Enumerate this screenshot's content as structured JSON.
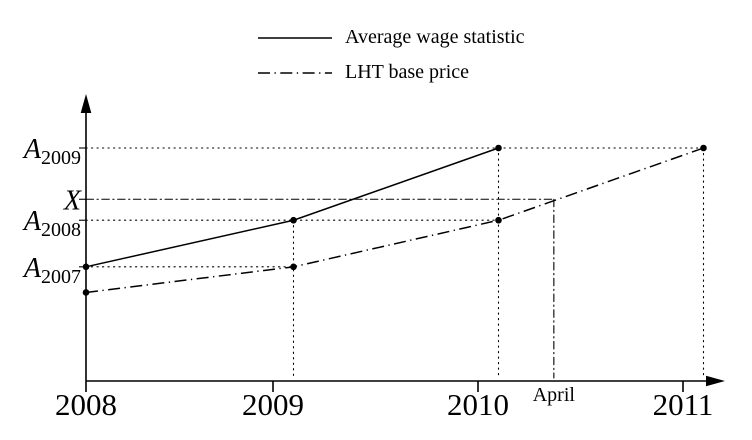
{
  "chart_data": {
    "type": "line",
    "legend": {
      "position": "top",
      "entries": [
        {
          "label": "Average wage statistic",
          "style": "solid"
        },
        {
          "label": "LHT base price",
          "style": "dashdot"
        }
      ]
    },
    "x_axis": {
      "ticks": [
        {
          "label": "2008",
          "year": 2008
        },
        {
          "label": "2009",
          "year": 2009
        },
        {
          "label": "2010",
          "year": 2010
        },
        {
          "label": "2011",
          "year": 2011
        }
      ],
      "extra_label": {
        "label": "April",
        "year": 2010.37
      }
    },
    "y_axis": {
      "labels": [
        {
          "label": "A",
          "subscript": "2009",
          "value": 1.0
        },
        {
          "label": "X",
          "subscript": "",
          "value": 0.78
        },
        {
          "label": "A",
          "subscript": "2008",
          "value": 0.69
        },
        {
          "label": "A",
          "subscript": "2007",
          "value": 0.49
        }
      ]
    },
    "series": [
      {
        "id": "average-wage",
        "name": "Average wage statistic",
        "style": "solid",
        "points": [
          {
            "x": 2008,
            "y": 0.49
          },
          {
            "x": 2009.1,
            "y": 0.69
          },
          {
            "x": 2010.1,
            "y": 1.0
          }
        ]
      },
      {
        "id": "lht-base-price",
        "name": "LHT base price",
        "style": "dashdot",
        "points": [
          {
            "x": 2008,
            "y": 0.38
          },
          {
            "x": 2009.1,
            "y": 0.49
          },
          {
            "x": 2010.1,
            "y": 0.69
          },
          {
            "x": 2011.1,
            "y": 1.0
          }
        ]
      }
    ],
    "guides": {
      "horizontal": [
        {
          "label": "A2009",
          "value": 1.0,
          "to_x": 2011.1,
          "style": "dotted"
        },
        {
          "label": "X",
          "value": 0.78,
          "to_x": 2010.37,
          "style": "dashdotfine"
        },
        {
          "label": "A2008",
          "value": 0.69,
          "to_x": 2010.1,
          "style": "dotted"
        },
        {
          "label": "A2007",
          "value": 0.49,
          "to_x": 2009.1,
          "style": "dotted"
        }
      ],
      "vertical": [
        {
          "label": "point-2009",
          "x": 2009.1,
          "from_value": 0.69,
          "style": "dotted"
        },
        {
          "label": "point-2010",
          "x": 2010.1,
          "from_value": 1.0,
          "style": "dotted"
        },
        {
          "label": "april",
          "x": 2010.37,
          "from_value": 0.78,
          "style": "dashdotfine"
        },
        {
          "label": "point-2011",
          "x": 2011.1,
          "from_value": 1.0,
          "style": "dotted"
        }
      ]
    },
    "colors": {
      "stroke": "#000000",
      "background": "#ffffff"
    }
  }
}
